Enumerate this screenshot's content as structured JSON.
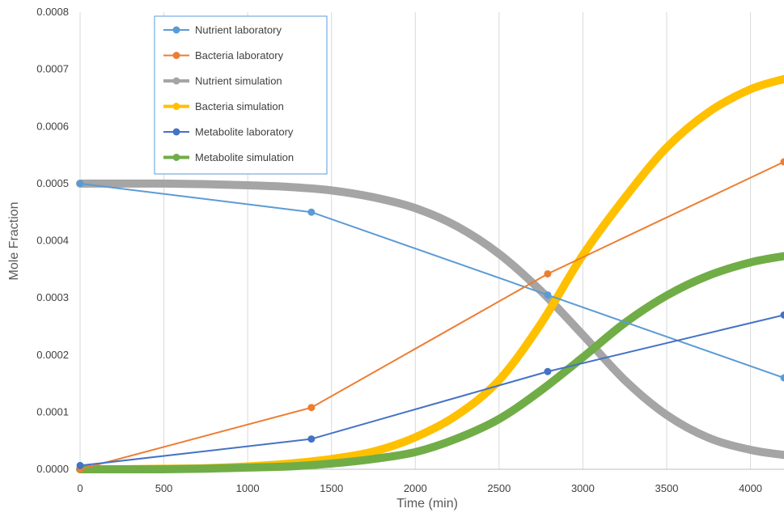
{
  "chart_data": {
    "type": "line",
    "title": "",
    "xlabel": "Time (min)",
    "ylabel": "Mole Fraction",
    "xlim": [
      0,
      4200
    ],
    "ylim": [
      0,
      0.0008
    ],
    "x_ticks": [
      0,
      500,
      1000,
      1500,
      2000,
      2500,
      3000,
      3500,
      4000
    ],
    "x_tick_labels": [
      "0",
      "500",
      "1000",
      "1500",
      "2000",
      "2500",
      "3000",
      "3500",
      "4000"
    ],
    "y_ticks": [
      0,
      0.0001,
      0.0002,
      0.0003,
      0.0004,
      0.0005,
      0.0006,
      0.0007,
      0.0008
    ],
    "y_tick_labels": [
      "0.0000",
      "0.0001",
      "0.0002",
      "0.0003",
      "0.0004",
      "0.0005",
      "0.0006",
      "0.0007",
      "0.0008"
    ],
    "grid": "vertical",
    "legend_position": "top-left",
    "series": [
      {
        "name": "Nutrient laboratory",
        "color": "#5B9BD5",
        "style": "lab",
        "x": [
          0,
          1380,
          2790,
          4200
        ],
        "y": [
          0.0005,
          0.00045,
          0.000305,
          0.00016
        ]
      },
      {
        "name": "Bacteria laboratory",
        "color": "#ED7D31",
        "style": "lab",
        "x": [
          0,
          1380,
          2790,
          4200
        ],
        "y": [
          0.0,
          0.000108,
          0.000342,
          0.000538
        ]
      },
      {
        "name": "Nutrient simulation",
        "color": "#A5A5A5",
        "style": "sim",
        "x": [
          0,
          250,
          500,
          750,
          1000,
          1250,
          1500,
          1750,
          2000,
          2250,
          2500,
          2750,
          3000,
          3250,
          3500,
          3750,
          4000,
          4200
        ],
        "y": [
          0.0005,
          0.0005,
          0.0005,
          0.000499,
          0.000497,
          0.000494,
          0.000488,
          0.000476,
          0.000457,
          0.000425,
          0.000377,
          0.000312,
          0.000235,
          0.000156,
          9.5e-05,
          5.5e-05,
          3.4e-05,
          2.5e-05
        ]
      },
      {
        "name": "Bacteria simulation",
        "color": "#FFC000",
        "style": "sim",
        "x": [
          0,
          250,
          500,
          750,
          1000,
          1250,
          1500,
          1750,
          2000,
          2250,
          2500,
          2750,
          3000,
          3250,
          3500,
          3750,
          4000,
          4200
        ],
        "y": [
          0.0,
          0.0,
          1e-06,
          2e-06,
          5e-06,
          1e-05,
          1.8e-05,
          3.1e-05,
          5.6e-05,
          9.5e-05,
          0.000156,
          0.000255,
          0.000375,
          0.000475,
          0.000563,
          0.000625,
          0.000665,
          0.000683
        ]
      },
      {
        "name": "Metabolite laboratory",
        "color": "#4472C4",
        "style": "lab",
        "x": [
          0,
          1380,
          2790,
          4200
        ],
        "y": [
          6.5e-06,
          5.3e-05,
          0.000171,
          0.00027
        ]
      },
      {
        "name": "Metabolite simulation",
        "color": "#70AD47",
        "style": "sim",
        "x": [
          0,
          250,
          500,
          750,
          1000,
          1250,
          1500,
          1750,
          2000,
          2250,
          2500,
          2750,
          3000,
          3250,
          3500,
          3750,
          4000,
          4200
        ],
        "y": [
          0.0,
          0.0,
          0.0,
          1e-06,
          3e-06,
          5e-06,
          1e-05,
          1.8e-05,
          3e-05,
          5.4e-05,
          8.8e-05,
          0.000138,
          0.000196,
          0.000256,
          0.000304,
          0.000339,
          0.000362,
          0.000373
        ]
      }
    ]
  }
}
